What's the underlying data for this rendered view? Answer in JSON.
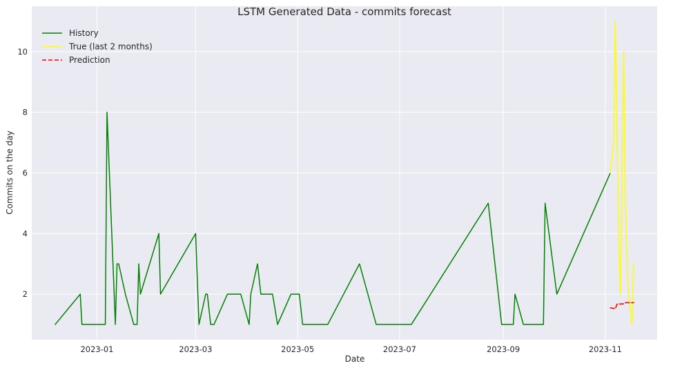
{
  "chart_data": {
    "type": "line",
    "title": "LSTM Generated Data - commits forecast",
    "xlabel": "Date",
    "ylabel": "Commits on the day",
    "xlim": [
      "2022-11-23",
      "2023-12-02"
    ],
    "ylim": [
      0.5,
      11.5
    ],
    "x_ticks": [
      "2023-01",
      "2023-03",
      "2023-05",
      "2023-07",
      "2023-09",
      "2023-11"
    ],
    "y_ticks": [
      2,
      4,
      6,
      8,
      10
    ],
    "grid": true,
    "legend_position": "top-left",
    "series": [
      {
        "name": "History",
        "color": "#008000",
        "style": "solid",
        "points": [
          [
            "2022-12-07",
            1
          ],
          [
            "2022-12-22",
            2
          ],
          [
            "2022-12-23",
            1
          ],
          [
            "2023-01-06",
            1
          ],
          [
            "2023-01-07",
            8
          ],
          [
            "2023-01-12",
            1
          ],
          [
            "2023-01-13",
            3
          ],
          [
            "2023-01-14",
            3
          ],
          [
            "2023-01-18",
            2
          ],
          [
            "2023-01-23",
            1
          ],
          [
            "2023-01-25",
            1
          ],
          [
            "2023-01-26",
            3
          ],
          [
            "2023-01-27",
            2
          ],
          [
            "2023-02-07",
            4
          ],
          [
            "2023-02-08",
            2
          ],
          [
            "2023-03-01",
            4
          ],
          [
            "2023-03-03",
            1
          ],
          [
            "2023-03-07",
            2
          ],
          [
            "2023-03-08",
            2
          ],
          [
            "2023-03-10",
            1
          ],
          [
            "2023-03-12",
            1
          ],
          [
            "2023-03-20",
            2
          ],
          [
            "2023-03-28",
            2
          ],
          [
            "2023-04-02",
            1
          ],
          [
            "2023-04-03",
            2
          ],
          [
            "2023-04-07",
            3
          ],
          [
            "2023-04-09",
            2
          ],
          [
            "2023-04-16",
            2
          ],
          [
            "2023-04-19",
            1
          ],
          [
            "2023-04-27",
            2
          ],
          [
            "2023-05-02",
            2
          ],
          [
            "2023-05-04",
            1
          ],
          [
            "2023-05-19",
            1
          ],
          [
            "2023-06-07",
            3
          ],
          [
            "2023-06-17",
            1
          ],
          [
            "2023-07-08",
            1
          ],
          [
            "2023-08-23",
            5
          ],
          [
            "2023-08-31",
            1
          ],
          [
            "2023-09-07",
            1
          ],
          [
            "2023-09-08",
            2
          ],
          [
            "2023-09-13",
            1
          ],
          [
            "2023-09-25",
            1
          ],
          [
            "2023-09-26",
            5
          ],
          [
            "2023-10-03",
            2
          ],
          [
            "2023-11-04",
            6
          ]
        ]
      },
      {
        "name": "True (last 2 months)",
        "color": "#ffff00",
        "style": "solid",
        "points": [
          [
            "2023-11-04",
            6
          ],
          [
            "2023-11-06",
            7
          ],
          [
            "2023-11-07",
            11
          ],
          [
            "2023-11-08",
            7
          ],
          [
            "2023-11-09",
            4
          ],
          [
            "2023-11-10",
            2
          ],
          [
            "2023-11-12",
            10
          ],
          [
            "2023-11-13",
            5
          ],
          [
            "2023-11-14",
            3
          ],
          [
            "2023-11-15",
            2
          ],
          [
            "2023-11-17",
            1
          ],
          [
            "2023-11-18",
            3
          ]
        ]
      },
      {
        "name": "Prediction",
        "color": "#ff0000",
        "style": "dashed",
        "points": [
          [
            "2023-11-04",
            1.55
          ],
          [
            "2023-11-07",
            1.52
          ],
          [
            "2023-11-08",
            1.67
          ],
          [
            "2023-11-12",
            1.68
          ],
          [
            "2023-11-13",
            1.72
          ],
          [
            "2023-11-18",
            1.72
          ]
        ]
      }
    ]
  }
}
